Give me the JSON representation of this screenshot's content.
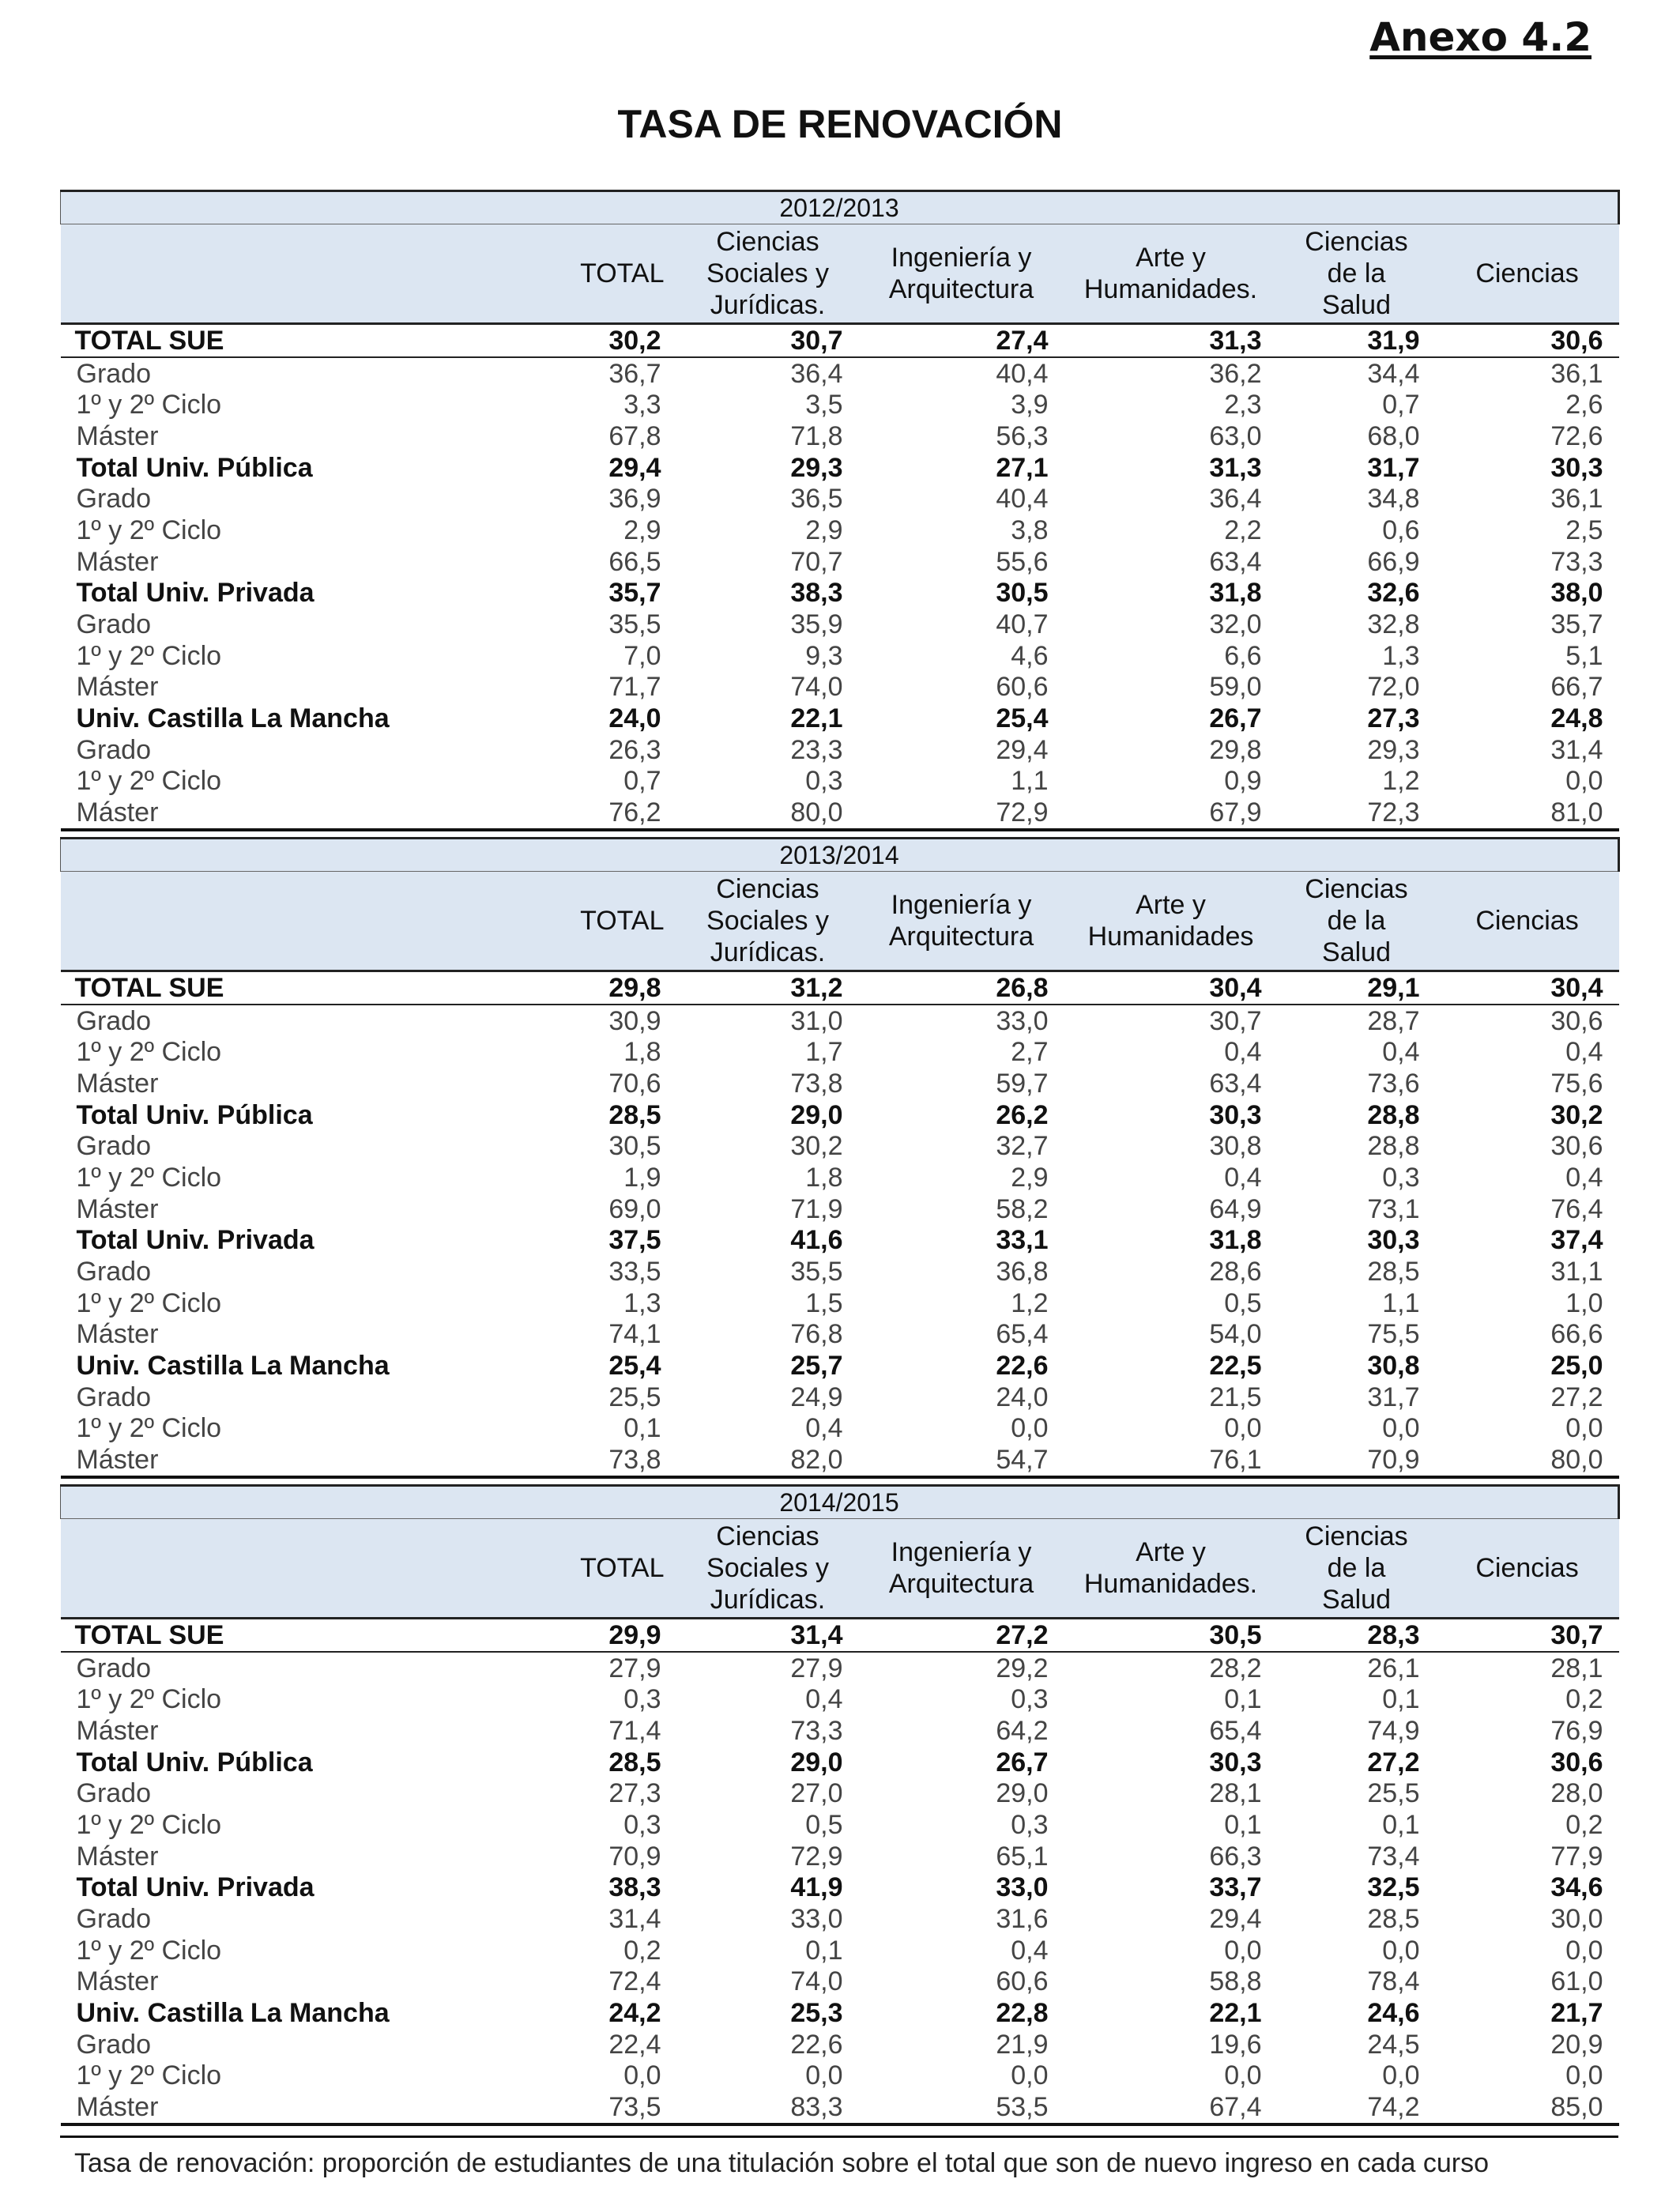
{
  "annex": "Anexo 4.2",
  "title": "TASA DE RENOVACIÓN",
  "columns": [
    "TOTAL",
    "Ciencias Sociales y Jurídicas.",
    "Ingeniería y Arquitectura",
    "Arte y Humanidades.",
    "Ciencias de la Salud",
    "Ciencias"
  ],
  "column_lines": [
    [
      "TOTAL"
    ],
    [
      "Ciencias",
      "Sociales y",
      "Jurídicas."
    ],
    [
      "Ingeniería y",
      "Arquitectura"
    ],
    [
      "Arte y",
      "Humanidades."
    ],
    [
      "Ciencias",
      "de la",
      "Salud"
    ],
    [
      "Ciencias"
    ]
  ],
  "column_lines_2014": [
    [
      "TOTAL"
    ],
    [
      "Ciencias",
      "Sociales y",
      "Jurídicas."
    ],
    [
      "Ingeniería y",
      "Arquitectura"
    ],
    [
      "Arte y",
      "Humanidades"
    ],
    [
      "Ciencias",
      "de la",
      "Salud"
    ],
    [
      "Ciencias"
    ]
  ],
  "tables": [
    {
      "year": "2012/2013",
      "rows": [
        {
          "label": "TOTAL SUE",
          "bold": true,
          "values": [
            "30,2",
            "30,7",
            "27,4",
            "31,3",
            "31,9",
            "30,6"
          ]
        },
        {
          "label": "Grado",
          "bold": false,
          "values": [
            "36,7",
            "36,4",
            "40,4",
            "36,2",
            "34,4",
            "36,1"
          ]
        },
        {
          "label": "1º y 2º Ciclo",
          "bold": false,
          "values": [
            "3,3",
            "3,5",
            "3,9",
            "2,3",
            "0,7",
            "2,6"
          ]
        },
        {
          "label": "Máster",
          "bold": false,
          "values": [
            "67,8",
            "71,8",
            "56,3",
            "63,0",
            "68,0",
            "72,6"
          ]
        },
        {
          "label": "Total Univ. Pública",
          "bold": true,
          "values": [
            "29,4",
            "29,3",
            "27,1",
            "31,3",
            "31,7",
            "30,3"
          ]
        },
        {
          "label": "Grado",
          "bold": false,
          "values": [
            "36,9",
            "36,5",
            "40,4",
            "36,4",
            "34,8",
            "36,1"
          ]
        },
        {
          "label": "1º y 2º Ciclo",
          "bold": false,
          "values": [
            "2,9",
            "2,9",
            "3,8",
            "2,2",
            "0,6",
            "2,5"
          ]
        },
        {
          "label": "Máster",
          "bold": false,
          "values": [
            "66,5",
            "70,7",
            "55,6",
            "63,4",
            "66,9",
            "73,3"
          ]
        },
        {
          "label": "Total Univ. Privada",
          "bold": true,
          "values": [
            "35,7",
            "38,3",
            "30,5",
            "31,8",
            "32,6",
            "38,0"
          ]
        },
        {
          "label": "Grado",
          "bold": false,
          "values": [
            "35,5",
            "35,9",
            "40,7",
            "32,0",
            "32,8",
            "35,7"
          ]
        },
        {
          "label": "1º y 2º Ciclo",
          "bold": false,
          "values": [
            "7,0",
            "9,3",
            "4,6",
            "6,6",
            "1,3",
            "5,1"
          ]
        },
        {
          "label": "Máster",
          "bold": false,
          "values": [
            "71,7",
            "74,0",
            "60,6",
            "59,0",
            "72,0",
            "66,7"
          ]
        },
        {
          "label": "Univ. Castilla La Mancha",
          "bold": true,
          "values": [
            "24,0",
            "22,1",
            "25,4",
            "26,7",
            "27,3",
            "24,8"
          ]
        },
        {
          "label": "Grado",
          "bold": false,
          "values": [
            "26,3",
            "23,3",
            "29,4",
            "29,8",
            "29,3",
            "31,4"
          ]
        },
        {
          "label": "1º y 2º Ciclo",
          "bold": false,
          "values": [
            "0,7",
            "0,3",
            "1,1",
            "0,9",
            "1,2",
            "0,0"
          ]
        },
        {
          "label": "Máster",
          "bold": false,
          "values": [
            "76,2",
            "80,0",
            "72,9",
            "67,9",
            "72,3",
            "81,0"
          ]
        }
      ]
    },
    {
      "year": "2013/2014",
      "rows": [
        {
          "label": "TOTAL SUE",
          "bold": true,
          "values": [
            "29,8",
            "31,2",
            "26,8",
            "30,4",
            "29,1",
            "30,4"
          ]
        },
        {
          "label": "Grado",
          "bold": false,
          "values": [
            "30,9",
            "31,0",
            "33,0",
            "30,7",
            "28,7",
            "30,6"
          ]
        },
        {
          "label": "1º y 2º Ciclo",
          "bold": false,
          "values": [
            "1,8",
            "1,7",
            "2,7",
            "0,4",
            "0,4",
            "0,4"
          ]
        },
        {
          "label": "Máster",
          "bold": false,
          "values": [
            "70,6",
            "73,8",
            "59,7",
            "63,4",
            "73,6",
            "75,6"
          ]
        },
        {
          "label": "Total Univ. Pública",
          "bold": true,
          "values": [
            "28,5",
            "29,0",
            "26,2",
            "30,3",
            "28,8",
            "30,2"
          ]
        },
        {
          "label": "Grado",
          "bold": false,
          "values": [
            "30,5",
            "30,2",
            "32,7",
            "30,8",
            "28,8",
            "30,6"
          ]
        },
        {
          "label": "1º y 2º Ciclo",
          "bold": false,
          "values": [
            "1,9",
            "1,8",
            "2,9",
            "0,4",
            "0,3",
            "0,4"
          ]
        },
        {
          "label": "Máster",
          "bold": false,
          "values": [
            "69,0",
            "71,9",
            "58,2",
            "64,9",
            "73,1",
            "76,4"
          ]
        },
        {
          "label": "Total Univ. Privada",
          "bold": true,
          "values": [
            "37,5",
            "41,6",
            "33,1",
            "31,8",
            "30,3",
            "37,4"
          ]
        },
        {
          "label": "Grado",
          "bold": false,
          "values": [
            "33,5",
            "35,5",
            "36,8",
            "28,6",
            "28,5",
            "31,1"
          ]
        },
        {
          "label": "1º y 2º Ciclo",
          "bold": false,
          "values": [
            "1,3",
            "1,5",
            "1,2",
            "0,5",
            "1,1",
            "1,0"
          ]
        },
        {
          "label": "Máster",
          "bold": false,
          "values": [
            "74,1",
            "76,8",
            "65,4",
            "54,0",
            "75,5",
            "66,6"
          ]
        },
        {
          "label": "Univ. Castilla La Mancha",
          "bold": true,
          "values": [
            "25,4",
            "25,7",
            "22,6",
            "22,5",
            "30,8",
            "25,0"
          ]
        },
        {
          "label": "Grado",
          "bold": false,
          "values": [
            "25,5",
            "24,9",
            "24,0",
            "21,5",
            "31,7",
            "27,2"
          ]
        },
        {
          "label": "1º y 2º Ciclo",
          "bold": false,
          "values": [
            "0,1",
            "0,4",
            "0,0",
            "0,0",
            "0,0",
            "0,0"
          ]
        },
        {
          "label": "Máster",
          "bold": false,
          "values": [
            "73,8",
            "82,0",
            "54,7",
            "76,1",
            "70,9",
            "80,0"
          ]
        }
      ]
    },
    {
      "year": "2014/2015",
      "rows": [
        {
          "label": "TOTAL SUE",
          "bold": true,
          "values": [
            "29,9",
            "31,4",
            "27,2",
            "30,5",
            "28,3",
            "30,7"
          ]
        },
        {
          "label": "Grado",
          "bold": false,
          "values": [
            "27,9",
            "27,9",
            "29,2",
            "28,2",
            "26,1",
            "28,1"
          ]
        },
        {
          "label": "1º y 2º Ciclo",
          "bold": false,
          "values": [
            "0,3",
            "0,4",
            "0,3",
            "0,1",
            "0,1",
            "0,2"
          ]
        },
        {
          "label": "Máster",
          "bold": false,
          "values": [
            "71,4",
            "73,3",
            "64,2",
            "65,4",
            "74,9",
            "76,9"
          ]
        },
        {
          "label": "Total Univ. Pública",
          "bold": true,
          "values": [
            "28,5",
            "29,0",
            "26,7",
            "30,3",
            "27,2",
            "30,6"
          ]
        },
        {
          "label": "Grado",
          "bold": false,
          "values": [
            "27,3",
            "27,0",
            "29,0",
            "28,1",
            "25,5",
            "28,0"
          ]
        },
        {
          "label": "1º y 2º Ciclo",
          "bold": false,
          "values": [
            "0,3",
            "0,5",
            "0,3",
            "0,1",
            "0,1",
            "0,2"
          ]
        },
        {
          "label": "Máster",
          "bold": false,
          "values": [
            "70,9",
            "72,9",
            "65,1",
            "66,3",
            "73,4",
            "77,9"
          ]
        },
        {
          "label": "Total Univ. Privada",
          "bold": true,
          "values": [
            "38,3",
            "41,9",
            "33,0",
            "33,7",
            "32,5",
            "34,6"
          ]
        },
        {
          "label": "Grado",
          "bold": false,
          "values": [
            "31,4",
            "33,0",
            "31,6",
            "29,4",
            "28,5",
            "30,0"
          ]
        },
        {
          "label": "1º y 2º Ciclo",
          "bold": false,
          "values": [
            "0,2",
            "0,1",
            "0,4",
            "0,0",
            "0,0",
            "0,0"
          ]
        },
        {
          "label": "Máster",
          "bold": false,
          "values": [
            "72,4",
            "74,0",
            "60,6",
            "58,8",
            "78,4",
            "61,0"
          ]
        },
        {
          "label": "Univ. Castilla La Mancha",
          "bold": true,
          "values": [
            "24,2",
            "25,3",
            "22,8",
            "22,1",
            "24,6",
            "21,7"
          ]
        },
        {
          "label": "Grado",
          "bold": false,
          "values": [
            "22,4",
            "22,6",
            "21,9",
            "19,6",
            "24,5",
            "20,9"
          ]
        },
        {
          "label": "1º y 2º Ciclo",
          "bold": false,
          "values": [
            "0,0",
            "0,0",
            "0,0",
            "0,0",
            "0,0",
            "0,0"
          ]
        },
        {
          "label": "Máster",
          "bold": false,
          "values": [
            "73,5",
            "83,3",
            "53,5",
            "67,4",
            "74,2",
            "85,0"
          ]
        }
      ]
    }
  ],
  "footnote": "Tasa de renovación: proporción de estudiantes de una titulación sobre el total que son de nuevo ingreso en cada curso",
  "colors": {
    "header_fill": "#dce6f2",
    "rule": "#111111"
  }
}
